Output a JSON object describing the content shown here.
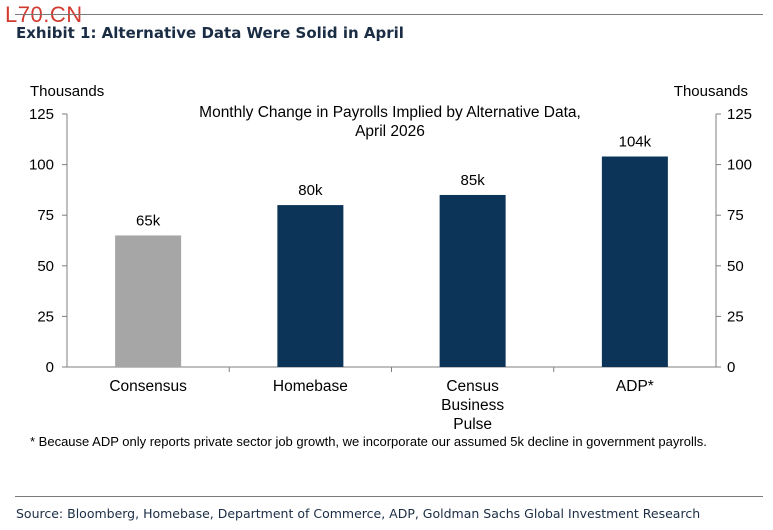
{
  "watermark": "L70.CN",
  "exhibit_title": "Exhibit 1: Alternative Data Were Solid in April",
  "footnote": "* Because ADP only reports private sector job growth, we incorporate our assumed 5k decline in government payrolls.",
  "source": "Source: Bloomberg, Homebase, Department of Commerce, ADP, Goldman Sachs Global Investment Research",
  "chart_data": {
    "type": "bar",
    "title": [
      "Monthly Change in Payrolls Implied by Alternative Data,",
      "April 2026"
    ],
    "ylabel_left": "Thousands",
    "ylabel_right": "Thousands",
    "ylim": [
      0,
      125
    ],
    "yticks": [
      0,
      25,
      50,
      75,
      100,
      125
    ],
    "grid": false,
    "categories": [
      [
        "Consensus"
      ],
      [
        "Homebase"
      ],
      [
        "Census",
        "Business",
        "Pulse"
      ],
      [
        "ADP*"
      ]
    ],
    "values": [
      65,
      80,
      85,
      104
    ],
    "data_labels": [
      "65k",
      "80k",
      "85k",
      "104k"
    ],
    "colors": [
      "#a6a6a6",
      "#0b3458",
      "#0b3458",
      "#0b3458"
    ]
  }
}
